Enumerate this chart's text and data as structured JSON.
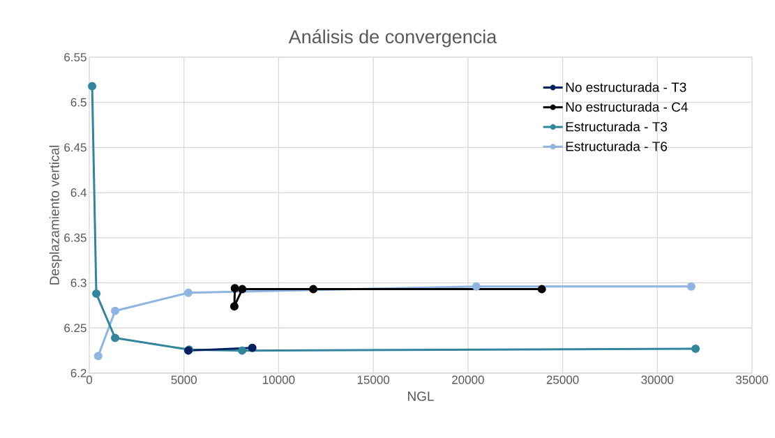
{
  "chart_data": {
    "type": "line",
    "title": "Análisis de convergencia",
    "xlabel": "NGL",
    "ylabel": "Desplazamiento vertical",
    "xlim": [
      0,
      35000
    ],
    "xticks": [
      0,
      5000,
      10000,
      15000,
      20000,
      25000,
      30000,
      35000
    ],
    "ylim": [
      6.2,
      6.55
    ],
    "yticks": [
      6.2,
      6.25,
      6.3,
      6.35,
      6.4,
      6.45,
      6.5,
      6.55
    ],
    "grid": true,
    "legend": "top right",
    "marker": "circle",
    "line_style": "solid",
    "series": [
      {
        "name": "No estructurada - T3",
        "color": "#002060",
        "x": [
          5230,
          8610
        ],
        "values": [
          6.225,
          6.228
        ]
      },
      {
        "name": "No estructurada - C4",
        "color": "#000000",
        "x": [
          7690,
          7660,
          8080,
          11830,
          23900
        ],
        "values": [
          6.294,
          6.274,
          6.293,
          6.293,
          6.293
        ]
      },
      {
        "name": "Estructurada - T3",
        "color": "#31859c",
        "x": [
          150,
          370,
          1363,
          5270,
          8070,
          32020
        ],
        "values": [
          6.518,
          6.288,
          6.239,
          6.226,
          6.225,
          6.227
        ]
      },
      {
        "name": "Estructurada - T6",
        "color": "#8eb4e3",
        "x": [
          470,
          1363,
          5230,
          20440,
          31790
        ],
        "values": [
          6.219,
          6.269,
          6.289,
          6.296,
          6.296
        ]
      }
    ]
  }
}
